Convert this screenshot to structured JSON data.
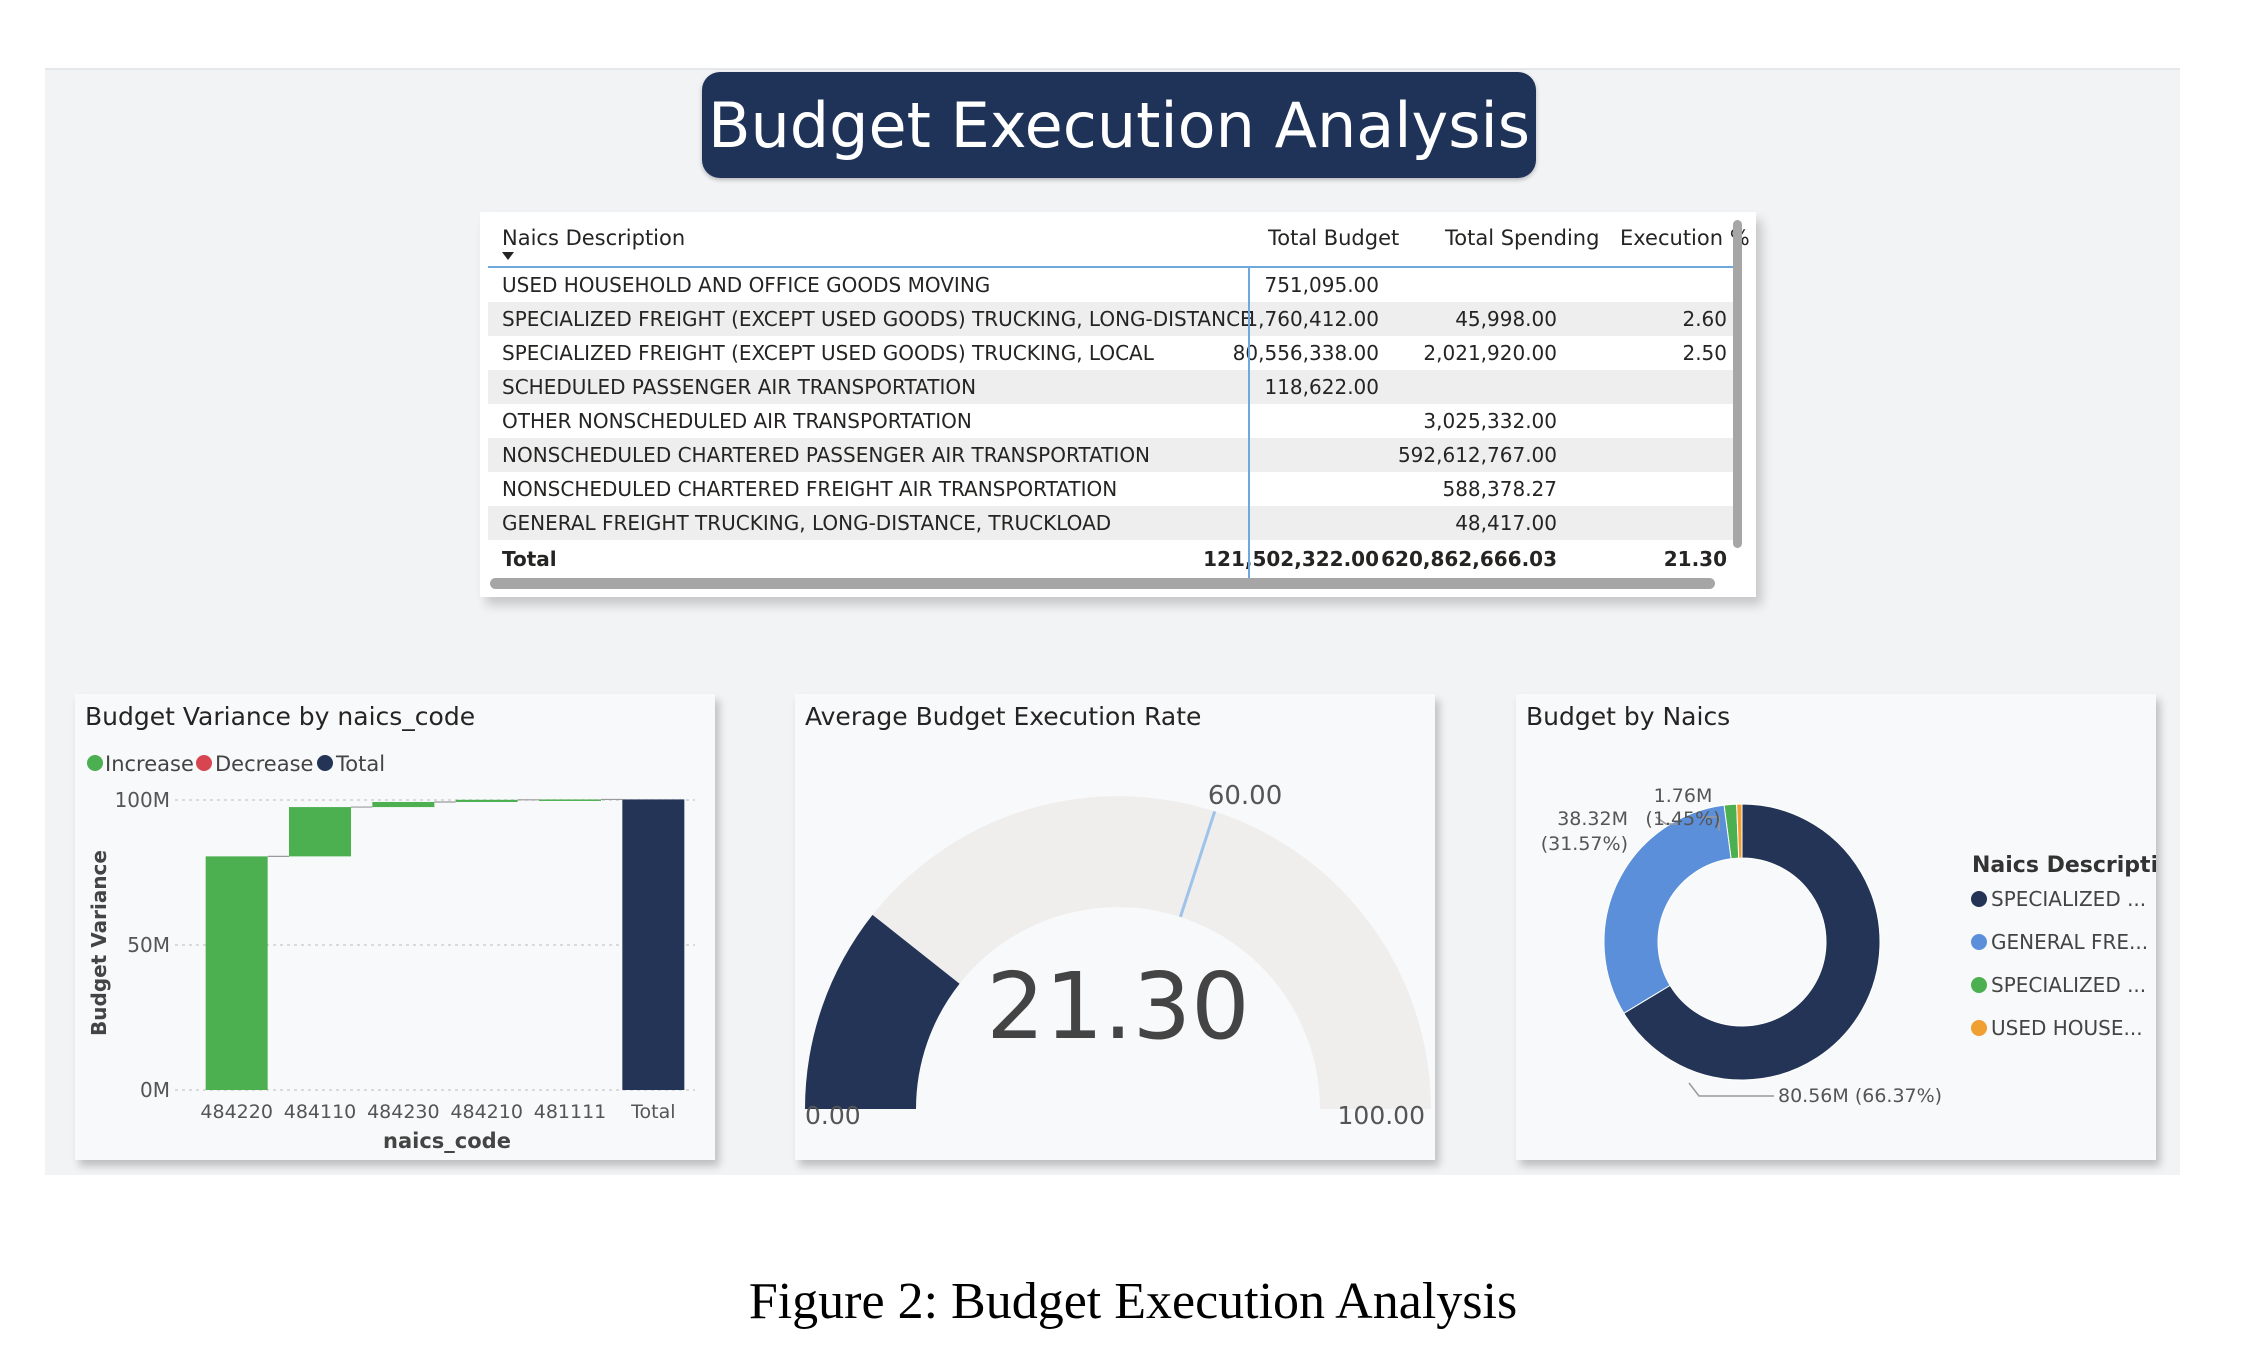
{
  "title": "Budget Execution Analysis",
  "caption": "Figure 2: Budget Execution Analysis",
  "table": {
    "columns": [
      "Naics Description",
      "Total Budget",
      "Total Spending",
      "Execution %"
    ],
    "rows": [
      [
        "USED HOUSEHOLD AND OFFICE GOODS MOVING",
        "751,095.00",
        "",
        ""
      ],
      [
        "SPECIALIZED FREIGHT (EXCEPT USED GOODS) TRUCKING, LONG-DISTANCE",
        "1,760,412.00",
        "45,998.00",
        "2.60"
      ],
      [
        "SPECIALIZED FREIGHT (EXCEPT USED GOODS) TRUCKING, LOCAL",
        "80,556,338.00",
        "2,021,920.00",
        "2.50"
      ],
      [
        "SCHEDULED PASSENGER AIR TRANSPORTATION",
        "118,622.00",
        "",
        ""
      ],
      [
        "OTHER NONSCHEDULED AIR TRANSPORTATION",
        "",
        "3,025,332.00",
        ""
      ],
      [
        "NONSCHEDULED CHARTERED PASSENGER AIR TRANSPORTATION",
        "",
        "592,612,767.00",
        ""
      ],
      [
        "NONSCHEDULED CHARTERED FREIGHT AIR TRANSPORTATION",
        "",
        "588,378.27",
        ""
      ],
      [
        "GENERAL FREIGHT TRUCKING, LONG-DISTANCE, TRUCKLOAD",
        "",
        "48,417.00",
        ""
      ]
    ],
    "total": [
      "Total",
      "121,502,322.00",
      "620,862,666.03",
      "21.30"
    ]
  },
  "chart_data": [
    {
      "type": "bar",
      "subtype": "waterfall",
      "title": "Budget Variance by naics_code",
      "xlabel": "naics_code",
      "ylabel": "Budget Variance",
      "legend": [
        "Increase",
        "Decrease",
        "Total"
      ],
      "legend_colors": [
        "#4caf50",
        "#d64550",
        "#233456"
      ],
      "categories": [
        "484220",
        "484110",
        "484230",
        "484210",
        "481111",
        "Total"
      ],
      "values": [
        80.56,
        17.0,
        1.76,
        0.75,
        0.12,
        100.2
      ],
      "kinds": [
        "increase",
        "increase",
        "increase",
        "increase",
        "increase",
        "total"
      ],
      "yticks": [
        "0M",
        "50M",
        "100M"
      ],
      "ylim": [
        0,
        100
      ],
      "grid": true,
      "legend_position": "top-left"
    },
    {
      "type": "gauge",
      "title": "Average Budget Execution Rate",
      "value": 21.3,
      "value_label": "21.30",
      "min": 0,
      "min_label": "0.00",
      "max": 100,
      "max_label": "100.00",
      "target": 60,
      "target_label": "60.00",
      "colors": {
        "fill": "#233456",
        "track": "#efeeed",
        "target": "#9ec3ea"
      }
    },
    {
      "type": "pie",
      "subtype": "donut",
      "title": "Budget by Naics",
      "legend_title": "Naics Description",
      "legend_position": "right",
      "slices": [
        {
          "name": "SPECIALIZED ...",
          "value": 80.56,
          "label": "80.56M (66.37%)",
          "color": "#233456"
        },
        {
          "name": "GENERAL FRE...",
          "value": 38.32,
          "label": "38.32M (31.57%)",
          "color": "#5b8fd9"
        },
        {
          "name": "SPECIALIZED ...",
          "value": 1.76,
          "label": "1.76M (1.45%)",
          "color": "#4caf50"
        },
        {
          "name": "USED HOUSE...",
          "value": 0.75,
          "label": "",
          "color": "#f0a030"
        }
      ],
      "label_parts": {
        "a_value": "38.32M",
        "a_pct": "(31.57%)",
        "b_value": "1.76M",
        "b_pct": "(1.45%)",
        "c": "80.56M (66.37%)"
      }
    }
  ]
}
